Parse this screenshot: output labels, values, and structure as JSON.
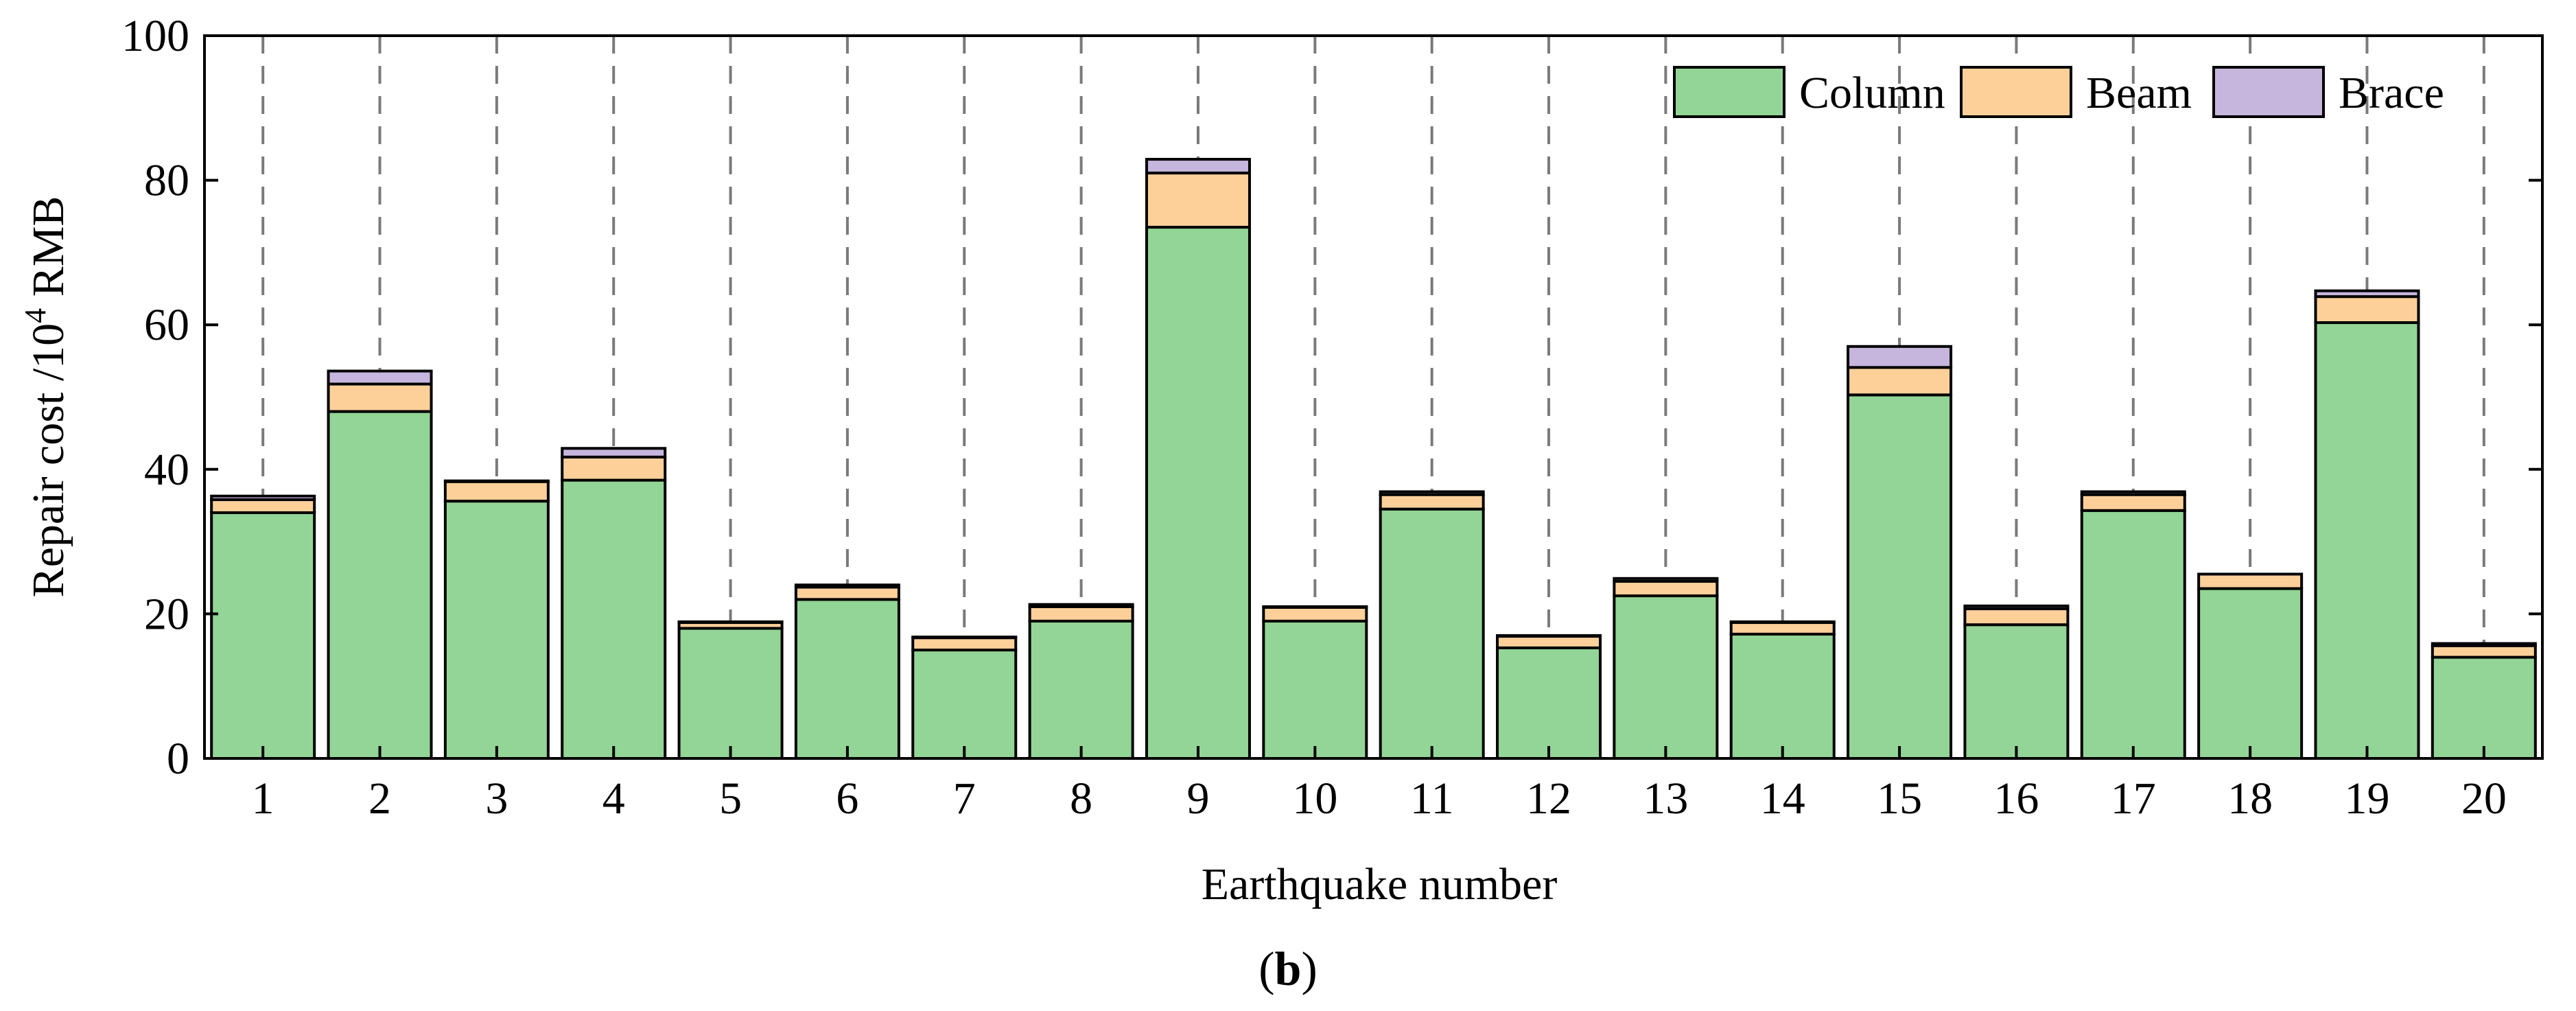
{
  "chart_data": {
    "type": "bar",
    "stacked": true,
    "categories": [
      "1",
      "2",
      "3",
      "4",
      "5",
      "6",
      "7",
      "8",
      "9",
      "10",
      "11",
      "12",
      "13",
      "14",
      "15",
      "16",
      "17",
      "18",
      "19",
      "20"
    ],
    "series": [
      {
        "name": "Column",
        "color": "#92d596",
        "values": [
          34.0,
          48.0,
          35.6,
          38.5,
          18.0,
          22.0,
          15.0,
          19.0,
          73.5,
          19.0,
          34.5,
          15.3,
          22.5,
          17.2,
          50.3,
          18.5,
          34.3,
          23.5,
          60.3,
          14.0
        ]
      },
      {
        "name": "Beam",
        "color": "#fdd09a",
        "values": [
          1.8,
          3.8,
          2.7,
          3.2,
          0.8,
          1.7,
          1.7,
          2.0,
          7.5,
          1.9,
          2.0,
          1.6,
          2.0,
          1.6,
          3.8,
          2.2,
          2.2,
          2.0,
          3.6,
          1.6
        ]
      },
      {
        "name": "Brace",
        "color": "#c6b5dd",
        "values": [
          0.5,
          1.8,
          0.1,
          1.2,
          0.1,
          0.3,
          0.1,
          0.3,
          1.9,
          0.1,
          0.4,
          0.1,
          0.4,
          0.1,
          2.9,
          0.4,
          0.4,
          0.0,
          0.8,
          0.3
        ]
      }
    ],
    "xlabel": "Earthquake number",
    "ylabel_main": "Repair cost /10",
    "ylabel_sup": "4",
    "ylabel_unit": " RMB",
    "ylim": [
      0,
      100
    ],
    "yticks": [
      0,
      20,
      40,
      60,
      80,
      100
    ],
    "grid": "vertical dashed lines at each category",
    "legend_position": "top-right",
    "panel_label": "b",
    "panel_open": "(",
    "panel_close": ")"
  }
}
